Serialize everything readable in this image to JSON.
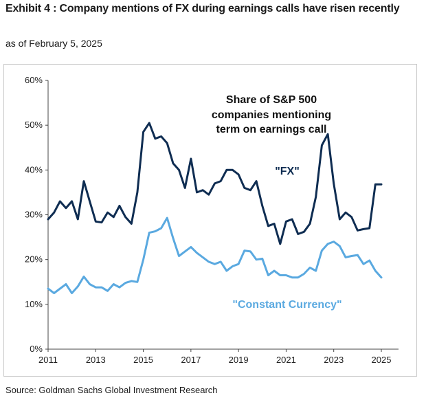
{
  "header": {
    "title": "Exhibit 4 : Company mentions of FX during earnings calls have risen recently",
    "subtitle": "as of February 5, 2025"
  },
  "footer": {
    "source": "Source: Goldman Sachs Global Investment Research"
  },
  "chart_data": {
    "type": "line",
    "title": "",
    "xlabel": "",
    "ylabel": "",
    "xlim": [
      2011,
      2025.3
    ],
    "ylim": [
      0,
      60
    ],
    "x_ticks": [
      "2011",
      "2013",
      "2015",
      "2017",
      "2019",
      "2021",
      "2023",
      "2025"
    ],
    "y_ticks": [
      "0%",
      "10%",
      "20%",
      "30%",
      "40%",
      "50%",
      "60%"
    ],
    "grid": false,
    "annotation": "Share of S&P 500 companies mentioning term on earnings call",
    "annotation_lines": [
      "Share of S&P 500",
      "companies mentioning",
      "term on earnings call"
    ],
    "series": [
      {
        "name": "\"FX\"",
        "color": "#0f2d52",
        "x": [
          2011.0,
          2011.25,
          2011.5,
          2011.75,
          2012.0,
          2012.25,
          2012.5,
          2012.75,
          2013.0,
          2013.25,
          2013.5,
          2013.75,
          2014.0,
          2014.25,
          2014.5,
          2014.75,
          2015.0,
          2015.25,
          2015.5,
          2015.75,
          2016.0,
          2016.25,
          2016.5,
          2016.75,
          2017.0,
          2017.25,
          2017.5,
          2017.75,
          2018.0,
          2018.25,
          2018.5,
          2018.75,
          2019.0,
          2019.25,
          2019.5,
          2019.75,
          2020.0,
          2020.25,
          2020.5,
          2020.75,
          2021.0,
          2021.25,
          2021.5,
          2021.75,
          2022.0,
          2022.25,
          2022.5,
          2022.75,
          2023.0,
          2023.25,
          2023.5,
          2023.75,
          2024.0,
          2024.25,
          2024.5,
          2024.75,
          2025.0
        ],
        "values": [
          29.0,
          30.5,
          33.0,
          31.5,
          33.0,
          29.0,
          37.5,
          33.0,
          28.5,
          28.3,
          30.5,
          29.5,
          32.0,
          29.5,
          28.0,
          35.0,
          48.5,
          50.5,
          47.0,
          47.5,
          46.0,
          41.5,
          40.0,
          36.0,
          42.5,
          35.0,
          35.5,
          34.5,
          37.0,
          37.5,
          40.0,
          40.0,
          39.0,
          36.0,
          35.5,
          37.5,
          32.0,
          27.5,
          28.0,
          23.5,
          28.5,
          29.0,
          25.7,
          26.2,
          28.0,
          34.0,
          45.5,
          48.0,
          37.0,
          29.0,
          30.5,
          29.5,
          26.5,
          26.8,
          27.0,
          36.8,
          36.8
        ]
      },
      {
        "name": "\"Constant Currency\"",
        "color": "#5aa9e0",
        "x": [
          2011.0,
          2011.25,
          2011.5,
          2011.75,
          2012.0,
          2012.25,
          2012.5,
          2012.75,
          2013.0,
          2013.25,
          2013.5,
          2013.75,
          2014.0,
          2014.25,
          2014.5,
          2014.75,
          2015.0,
          2015.25,
          2015.5,
          2015.75,
          2016.0,
          2016.25,
          2016.5,
          2016.75,
          2017.0,
          2017.25,
          2017.5,
          2017.75,
          2018.0,
          2018.25,
          2018.5,
          2018.75,
          2019.0,
          2019.25,
          2019.5,
          2019.75,
          2020.0,
          2020.25,
          2020.5,
          2020.75,
          2021.0,
          2021.25,
          2021.5,
          2021.75,
          2022.0,
          2022.25,
          2022.5,
          2022.75,
          2023.0,
          2023.25,
          2023.5,
          2023.75,
          2024.0,
          2024.25,
          2024.5,
          2024.75,
          2025.0
        ],
        "values": [
          13.5,
          12.5,
          13.5,
          14.5,
          12.5,
          14.0,
          16.2,
          14.5,
          13.8,
          13.8,
          13.0,
          14.5,
          13.8,
          14.8,
          15.2,
          15.0,
          20.0,
          26.0,
          26.3,
          27.0,
          29.3,
          24.8,
          20.8,
          21.8,
          22.8,
          21.5,
          20.5,
          19.5,
          19.0,
          19.5,
          17.5,
          18.5,
          19.0,
          22.0,
          21.8,
          20.0,
          20.2,
          16.5,
          17.5,
          16.5,
          16.5,
          16.0,
          16.0,
          16.8,
          18.2,
          17.5,
          22.0,
          23.5,
          24.0,
          23.0,
          20.5,
          20.8,
          21.0,
          19.0,
          19.8,
          17.5,
          16.0
        ]
      }
    ]
  }
}
